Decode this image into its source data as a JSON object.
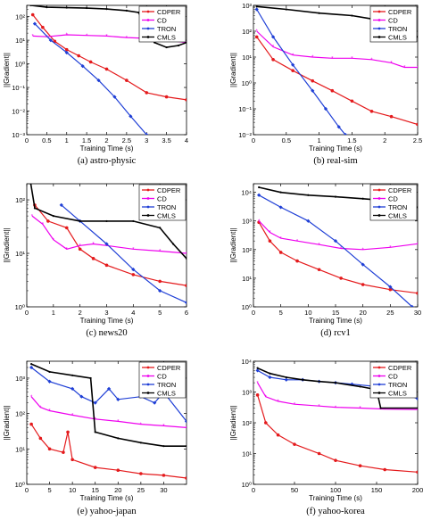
{
  "legend_labels": [
    "CDPER",
    "CD",
    "TRON",
    "CMLS"
  ],
  "colors": {
    "CDPER": "#e41a1c",
    "CD": "#ee00ee",
    "TRON": "#1f3fd6",
    "CMLS": "#000000"
  },
  "chart_data": [
    {
      "type": "line",
      "caption": "(a)  astro-physic",
      "xlabel": "Training Time (s)",
      "ylabel": "||Gradient||",
      "xlim": [
        0,
        4
      ],
      "xticks": [
        "0",
        "0.5",
        "1",
        "1.5",
        "2",
        "2.5",
        "3",
        "3.5",
        "4"
      ],
      "ylog": true,
      "ylim": [
        0.001,
        300
      ],
      "yticks": [
        "10⁻³",
        "10⁻²",
        "10⁻¹",
        "10⁰",
        "10¹",
        "10²"
      ],
      "legend": "top-right",
      "grid": false,
      "series": [
        {
          "name": "CDPER",
          "x": [
            0.15,
            0.4,
            0.7,
            1.0,
            1.3,
            1.6,
            2.0,
            2.5,
            3.0,
            3.5,
            4.0
          ],
          "y": [
            120,
            35,
            9,
            4,
            2.2,
            1.2,
            0.6,
            0.2,
            0.06,
            0.04,
            0.03
          ]
        },
        {
          "name": "CD",
          "x": [
            0.15,
            0.5,
            1.0,
            1.5,
            2.0,
            2.5,
            3.0,
            3.5,
            4.0
          ],
          "y": [
            15,
            14,
            17,
            16,
            15,
            13,
            12,
            10,
            8
          ]
        },
        {
          "name": "TRON",
          "x": [
            0.2,
            0.6,
            1.0,
            1.4,
            1.8,
            2.2,
            2.6,
            3.0
          ],
          "y": [
            50,
            10,
            3,
            0.8,
            0.2,
            0.04,
            0.006,
            0.001
          ]
        },
        {
          "name": "CMLS",
          "x": [
            0.1,
            0.5,
            1.0,
            1.5,
            2.0,
            2.5,
            2.8,
            3.2,
            3.5,
            3.8,
            4.0
          ],
          "y": [
            300,
            250,
            240,
            230,
            210,
            180,
            150,
            8,
            5,
            6,
            8
          ]
        }
      ]
    },
    {
      "type": "line",
      "caption": "(b)  real-sim",
      "xlabel": "Training Time (s)",
      "ylabel": "||Gradient||",
      "xlim": [
        0,
        2.5
      ],
      "xticks": [
        "0",
        "0.5",
        "1",
        "1.5",
        "2",
        "2.5"
      ],
      "ylog": true,
      "ylim": [
        0.01,
        1000
      ],
      "yticks": [
        "10⁻²",
        "10⁻¹",
        "10⁰",
        "10¹",
        "10²",
        "10³"
      ],
      "legend": "top-right",
      "grid": false,
      "series": [
        {
          "name": "CDPER",
          "x": [
            0.05,
            0.3,
            0.6,
            0.9,
            1.2,
            1.5,
            1.8,
            2.1,
            2.5
          ],
          "y": [
            60,
            8,
            3,
            1.2,
            0.5,
            0.2,
            0.08,
            0.05,
            0.025
          ]
        },
        {
          "name": "CD",
          "x": [
            0.05,
            0.3,
            0.6,
            0.9,
            1.2,
            1.5,
            1.8,
            2.1,
            2.3,
            2.5
          ],
          "y": [
            100,
            25,
            12,
            10,
            9,
            9,
            8,
            6,
            4,
            4
          ]
        },
        {
          "name": "TRON",
          "x": [
            0.05,
            0.3,
            0.6,
            0.9,
            1.1,
            1.3,
            1.4
          ],
          "y": [
            700,
            60,
            5,
            0.5,
            0.1,
            0.02,
            0.01
          ]
        },
        {
          "name": "CMLS",
          "x": [
            0.05,
            0.5,
            1.0,
            1.5,
            1.8,
            2.0,
            2.3,
            2.5
          ],
          "y": [
            900,
            700,
            500,
            400,
            300,
            200,
            100,
            60
          ]
        }
      ]
    },
    {
      "type": "line",
      "caption": "(c)  news20",
      "xlabel": "Training Time (s)",
      "ylabel": "||Gradient||",
      "xlim": [
        0,
        6
      ],
      "xticks": [
        "0",
        "1",
        "2",
        "3",
        "4",
        "5",
        "6"
      ],
      "ylog": true,
      "ylim": [
        1,
        200
      ],
      "yticks": [
        "10⁰",
        "10¹",
        "10²"
      ],
      "legend": "top-right",
      "grid": false,
      "series": [
        {
          "name": "CDPER",
          "x": [
            0.3,
            0.8,
            1.5,
            2.0,
            2.5,
            3.0,
            4.0,
            5.0,
            6.0
          ],
          "y": [
            80,
            40,
            30,
            12,
            8,
            6,
            4,
            3,
            2.5
          ]
        },
        {
          "name": "CD",
          "x": [
            0.2,
            0.6,
            1.0,
            1.5,
            2.0,
            2.5,
            3.0,
            4.0,
            5.0,
            6.0
          ],
          "y": [
            50,
            35,
            18,
            12,
            14,
            15,
            14,
            12,
            11,
            10
          ]
        },
        {
          "name": "TRON",
          "x": [
            1.3,
            2.0,
            3.0,
            4.0,
            5.0,
            6.0
          ],
          "y": [
            80,
            40,
            15,
            5,
            2,
            1.2
          ]
        },
        {
          "name": "CMLS",
          "x": [
            0.15,
            0.3,
            1.0,
            2.0,
            3.0,
            4.0,
            5.0,
            5.5,
            6.0
          ],
          "y": [
            200,
            70,
            50,
            40,
            40,
            40,
            30,
            15,
            8
          ]
        }
      ]
    },
    {
      "type": "line",
      "caption": "(d)  rcv1",
      "xlabel": "Training Time (s)",
      "ylabel": "||Gradient||",
      "xlim": [
        0,
        30
      ],
      "xticks": [
        "0",
        "5",
        "10",
        "15",
        "20",
        "25",
        "30"
      ],
      "ylog": true,
      "ylim": [
        1,
        20000
      ],
      "yticks": [
        "10⁰",
        "10¹",
        "10²",
        "10³",
        "10⁴"
      ],
      "legend": "top-right",
      "grid": false,
      "series": [
        {
          "name": "CDPER",
          "x": [
            1,
            3,
            5,
            8,
            12,
            16,
            20,
            25,
            30
          ],
          "y": [
            900,
            200,
            80,
            40,
            20,
            10,
            6,
            4,
            3
          ]
        },
        {
          "name": "CD",
          "x": [
            1,
            3,
            5,
            8,
            12,
            16,
            20,
            25,
            30
          ],
          "y": [
            1000,
            400,
            250,
            200,
            150,
            110,
            100,
            120,
            160
          ]
        },
        {
          "name": "TRON",
          "x": [
            1,
            5,
            10,
            15,
            20,
            25,
            29
          ],
          "y": [
            8000,
            3000,
            1000,
            200,
            30,
            5,
            1
          ]
        },
        {
          "name": "CMLS",
          "x": [
            1,
            5,
            10,
            15,
            20,
            25,
            27,
            30
          ],
          "y": [
            15000,
            10000,
            8000,
            7000,
            6000,
            5000,
            3500,
            3000
          ]
        }
      ]
    },
    {
      "type": "line",
      "caption": "(e)  yahoo-japan",
      "xlabel": "Training Time (s)",
      "ylabel": "||Gradient||",
      "xlim": [
        0,
        35
      ],
      "xticks": [
        "0",
        "5",
        "10",
        "15",
        "20",
        "25",
        "30"
      ],
      "ylog": true,
      "ylim": [
        1,
        3000
      ],
      "yticks": [
        "10⁰",
        "10¹",
        "10²",
        "10³"
      ],
      "legend": "top-right",
      "grid": false,
      "series": [
        {
          "name": "CDPER",
          "x": [
            1,
            3,
            5,
            8,
            9,
            10,
            15,
            20,
            25,
            30,
            35
          ],
          "y": [
            50,
            20,
            10,
            8,
            30,
            5,
            3,
            2.5,
            2,
            1.8,
            1.5
          ]
        },
        {
          "name": "CD",
          "x": [
            1,
            3,
            5,
            10,
            15,
            20,
            25,
            30,
            35
          ],
          "y": [
            300,
            150,
            120,
            90,
            70,
            60,
            50,
            45,
            40
          ]
        },
        {
          "name": "TRON",
          "x": [
            1,
            5,
            10,
            12,
            15,
            18,
            20,
            25,
            28,
            30,
            35
          ],
          "y": [
            2000,
            800,
            500,
            300,
            200,
            500,
            250,
            300,
            200,
            400,
            60
          ]
        },
        {
          "name": "CMLS",
          "x": [
            1,
            5,
            10,
            14,
            15,
            20,
            25,
            30,
            35
          ],
          "y": [
            2500,
            1500,
            1200,
            1000,
            30,
            20,
            15,
            12,
            12
          ]
        }
      ]
    },
    {
      "type": "line",
      "caption": "(f)  yahoo-korea",
      "xlabel": "Training Time (s)",
      "ylabel": "||Gradient||",
      "xlim": [
        0,
        200
      ],
      "xticks": [
        "0",
        "50",
        "100",
        "150",
        "200"
      ],
      "ylog": true,
      "ylim": [
        1,
        10000
      ],
      "yticks": [
        "10⁰",
        "10¹",
        "10²",
        "10³",
        "10⁴"
      ],
      "legend": "top-right",
      "grid": false,
      "series": [
        {
          "name": "CDPER",
          "x": [
            5,
            15,
            30,
            50,
            80,
            100,
            130,
            160,
            200
          ],
          "y": [
            800,
            100,
            40,
            20,
            10,
            6,
            4,
            3,
            2.5
          ]
        },
        {
          "name": "CD",
          "x": [
            5,
            15,
            30,
            50,
            80,
            100,
            130,
            160,
            200
          ],
          "y": [
            2000,
            700,
            500,
            400,
            350,
            320,
            300,
            280,
            270
          ]
        },
        {
          "name": "TRON",
          "x": [
            5,
            20,
            40,
            60,
            80,
            100,
            120,
            150,
            180,
            200
          ],
          "y": [
            5000,
            3000,
            2500,
            2500,
            2200,
            2000,
            1800,
            1500,
            1000,
            600
          ]
        },
        {
          "name": "CMLS",
          "x": [
            5,
            20,
            40,
            60,
            80,
            100,
            130,
            150,
            155,
            200
          ],
          "y": [
            6000,
            4000,
            3000,
            2500,
            2200,
            2000,
            1500,
            1200,
            300,
            300
          ]
        }
      ]
    }
  ]
}
